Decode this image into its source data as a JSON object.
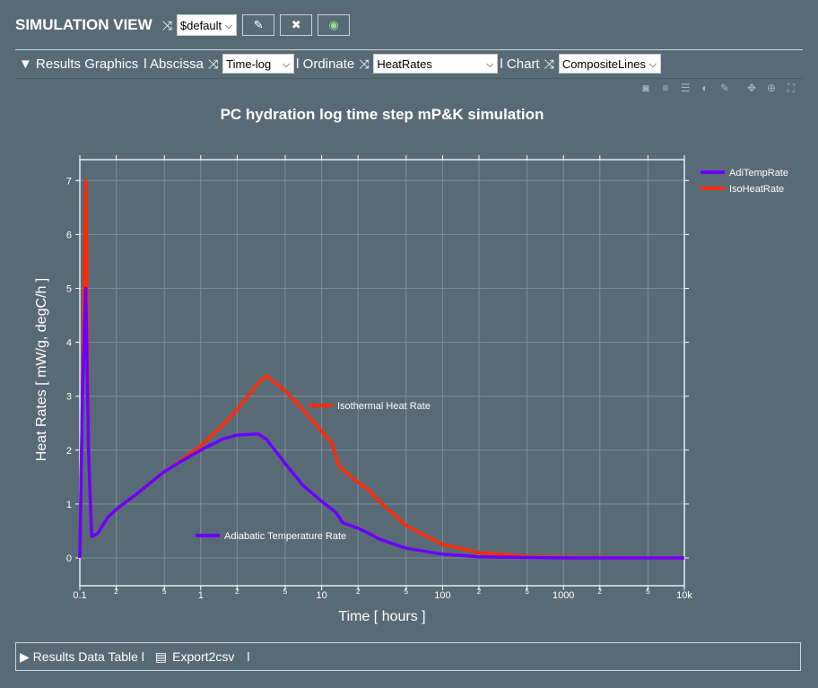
{
  "header": {
    "title": "SIMULATION VIEW",
    "view_select": "$default",
    "edit_icon": "pencil-icon",
    "delete_icon": "trash-icon",
    "preview_icon": "windows-eye-icon"
  },
  "graphics_bar": {
    "toggle": "▼",
    "label": "Results Graphics",
    "sep": "l",
    "abscissa_label": "Abscissa",
    "abscissa_value": "Time-log",
    "ordinate_label": "l Ordinate",
    "ordinate_value": "HeatRates",
    "chart_label": "l Chart",
    "chart_value": "CompositeLines"
  },
  "toolbar_icons": [
    "camera-icon",
    "checklist-icon",
    "list-icon",
    "contrast-icon",
    "pencil-icon",
    "move-icon",
    "zoom-icon",
    "autoscale-icon"
  ],
  "chart_data": {
    "type": "line",
    "title": "PC hydration log time step mP&K simulation",
    "xlabel": "Time [ hours ]",
    "ylabel": "Heat Rates [ mW/g, degC/h ]",
    "xscale": "log",
    "xlim": [
      0.1,
      10000
    ],
    "ylim": [
      -0.5,
      7.4
    ],
    "xticks": [
      {
        "v": 0.1,
        "l": "0.1"
      },
      {
        "v": 0.2,
        "l": "2"
      },
      {
        "v": 0.5,
        "l": "5"
      },
      {
        "v": 1,
        "l": "1"
      },
      {
        "v": 2,
        "l": "2"
      },
      {
        "v": 5,
        "l": "5"
      },
      {
        "v": 10,
        "l": "10"
      },
      {
        "v": 20,
        "l": "2"
      },
      {
        "v": 50,
        "l": "5"
      },
      {
        "v": 100,
        "l": "100"
      },
      {
        "v": 200,
        "l": "2"
      },
      {
        "v": 500,
        "l": "5"
      },
      {
        "v": 1000,
        "l": "1000"
      },
      {
        "v": 2000,
        "l": "2"
      },
      {
        "v": 5000,
        "l": "5"
      },
      {
        "v": 10000,
        "l": "10k"
      }
    ],
    "yticks": [
      0,
      1,
      2,
      3,
      4,
      5,
      6,
      7
    ],
    "grid": true,
    "legend": "right",
    "series": [
      {
        "name": "AdiTempRate",
        "annotation": "Adiabatic Temperature Rate",
        "color": "#6a00ff",
        "x": [
          0.1,
          0.105,
          0.112,
          0.118,
          0.125,
          0.14,
          0.17,
          0.2,
          0.3,
          0.5,
          0.7,
          1,
          1.5,
          2,
          3,
          3.5,
          5,
          7,
          10,
          13,
          15,
          20,
          25,
          30,
          50,
          100,
          200,
          1000,
          10000
        ],
        "y": [
          0,
          3,
          5.0,
          2,
          0.4,
          0.45,
          0.75,
          0.9,
          1.2,
          1.6,
          1.8,
          2.0,
          2.2,
          2.28,
          2.3,
          2.2,
          1.75,
          1.35,
          1.05,
          0.85,
          0.65,
          0.55,
          0.45,
          0.35,
          0.18,
          0.07,
          0.02,
          0,
          0
        ]
      },
      {
        "name": "IsoHeatRate",
        "annotation": "Isothermal Heat Rate",
        "color": "#ff2a00",
        "x": [
          0.1,
          0.105,
          0.112,
          0.118,
          0.125,
          0.14,
          0.17,
          0.2,
          0.3,
          0.5,
          0.7,
          1,
          1.5,
          2,
          3,
          3.5,
          5,
          7,
          10,
          12,
          14,
          20,
          25,
          30,
          50,
          100,
          200,
          500,
          1000,
          10000
        ],
        "y": [
          0,
          3,
          7.0,
          2,
          0.4,
          0.45,
          0.75,
          0.9,
          1.2,
          1.6,
          1.82,
          2.08,
          2.45,
          2.75,
          3.25,
          3.38,
          3.1,
          2.75,
          2.35,
          2.15,
          1.7,
          1.4,
          1.25,
          1.05,
          0.6,
          0.25,
          0.1,
          0.03,
          0.01,
          0
        ]
      }
    ]
  },
  "bottom_bar": {
    "toggle": "▶",
    "label": "Results Data Table l",
    "export_icon": "csv-file-icon",
    "export_label": "Export2csv",
    "sep": "l"
  }
}
